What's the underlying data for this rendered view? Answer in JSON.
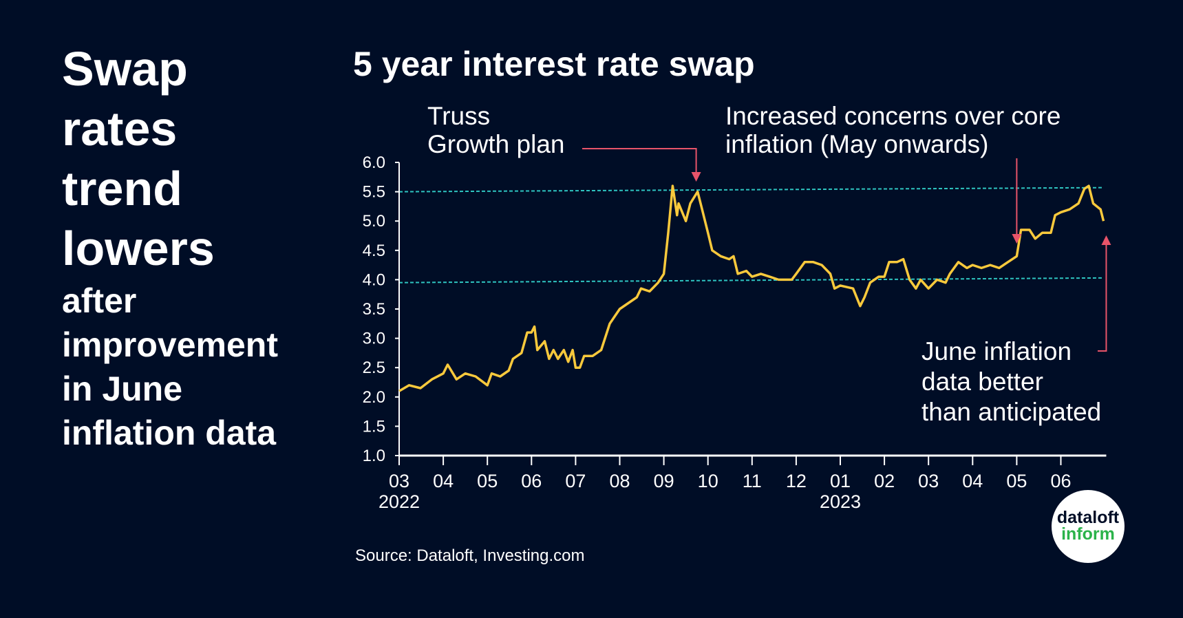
{
  "headline": {
    "big": [
      "Swap",
      "rates",
      "trend",
      "lowers"
    ],
    "small": [
      "after",
      "improvement",
      "in June",
      "inflation data"
    ]
  },
  "source": "Source: Dataloft, Investing.com",
  "logo": {
    "line1": "dataloft",
    "line2": "inform"
  },
  "colors": {
    "background": "#000d26",
    "series": "#f9c93c",
    "reference": "#2ec4c0",
    "annotation": "#e8546a"
  },
  "chart_data": {
    "type": "line",
    "title": "5 year interest rate swap",
    "ylim": [
      1.0,
      6.0
    ],
    "yticks": [
      "1.0",
      "1.5",
      "2.0",
      "2.5",
      "3.0",
      "3.5",
      "4.0",
      "4.5",
      "5.0",
      "5.5",
      "6.0"
    ],
    "xlim": [
      "2022-03-01",
      "2023-06-30"
    ],
    "xticks": [
      {
        "label": "03",
        "year": "2022"
      },
      {
        "label": "04"
      },
      {
        "label": "05"
      },
      {
        "label": "06"
      },
      {
        "label": "07"
      },
      {
        "label": "08"
      },
      {
        "label": "09"
      },
      {
        "label": "10"
      },
      {
        "label": "11"
      },
      {
        "label": "12"
      },
      {
        "label": "01",
        "year": "2023"
      },
      {
        "label": "02"
      },
      {
        "label": "03"
      },
      {
        "label": "04"
      },
      {
        "label": "05"
      },
      {
        "label": "06"
      }
    ],
    "grid": false,
    "series": [
      {
        "x": [
          "2022-03-01",
          "2022-03-08",
          "2022-03-16",
          "2022-03-24",
          "2022-04-01",
          "2022-04-04",
          "2022-04-10",
          "2022-04-16",
          "2022-04-23",
          "2022-05-01",
          "2022-05-04",
          "2022-05-10",
          "2022-05-16",
          "2022-05-19",
          "2022-05-25",
          "2022-05-29",
          "2022-06-01",
          "2022-06-03",
          "2022-06-05",
          "2022-06-10",
          "2022-06-13",
          "2022-06-16",
          "2022-06-19",
          "2022-06-23",
          "2022-06-26",
          "2022-06-29",
          "2022-07-01",
          "2022-07-04",
          "2022-07-07",
          "2022-07-13",
          "2022-07-19",
          "2022-07-25",
          "2022-08-01",
          "2022-08-07",
          "2022-08-13",
          "2022-08-16",
          "2022-08-22",
          "2022-08-28",
          "2022-09-01",
          "2022-09-04",
          "2022-09-07",
          "2022-09-10",
          "2022-09-11",
          "2022-09-16",
          "2022-09-19",
          "2022-09-24",
          "2022-09-27",
          "2022-10-01",
          "2022-10-04",
          "2022-10-10",
          "2022-10-16",
          "2022-10-19",
          "2022-10-22",
          "2022-10-28",
          "2022-11-01",
          "2022-11-07",
          "2022-11-13",
          "2022-11-19",
          "2022-11-28",
          "2022-12-01",
          "2022-12-07",
          "2022-12-13",
          "2022-12-19",
          "2022-12-25",
          "2022-12-28",
          "2023-01-01",
          "2023-01-10",
          "2023-01-15",
          "2023-01-18",
          "2023-01-22",
          "2023-01-28",
          "2023-02-01",
          "2023-02-04",
          "2023-02-09",
          "2023-02-13",
          "2023-02-17",
          "2023-02-21",
          "2023-02-24",
          "2023-03-01",
          "2023-03-07",
          "2023-03-13",
          "2023-03-16",
          "2023-03-22",
          "2023-03-28",
          "2023-04-01",
          "2023-04-07",
          "2023-04-13",
          "2023-04-19",
          "2023-04-25",
          "2023-05-01",
          "2023-05-04",
          "2023-05-10",
          "2023-05-14",
          "2023-05-19",
          "2023-05-25",
          "2023-05-28",
          "2023-06-01",
          "2023-06-07",
          "2023-06-13",
          "2023-06-17",
          "2023-06-20",
          "2023-06-23",
          "2023-06-28",
          "2023-06-30"
        ],
        "y": [
          2.1,
          2.2,
          2.15,
          2.3,
          2.4,
          2.55,
          2.3,
          2.4,
          2.35,
          2.2,
          2.4,
          2.35,
          2.45,
          2.65,
          2.75,
          3.1,
          3.1,
          3.2,
          2.8,
          2.95,
          2.65,
          2.8,
          2.65,
          2.8,
          2.6,
          2.8,
          2.5,
          2.5,
          2.7,
          2.7,
          2.8,
          3.25,
          3.5,
          3.6,
          3.7,
          3.85,
          3.8,
          3.95,
          4.1,
          4.8,
          5.6,
          5.1,
          5.3,
          5.0,
          5.3,
          5.5,
          5.2,
          4.8,
          4.5,
          4.4,
          4.35,
          4.4,
          4.1,
          4.15,
          4.05,
          4.1,
          4.05,
          4.0,
          4.0,
          4.1,
          4.3,
          4.3,
          4.25,
          4.1,
          3.85,
          3.9,
          3.85,
          3.55,
          3.7,
          3.95,
          4.05,
          4.05,
          4.3,
          4.3,
          4.35,
          4.0,
          3.85,
          4.0,
          3.85,
          4.0,
          3.95,
          4.1,
          4.3,
          4.2,
          4.25,
          4.2,
          4.25,
          4.2,
          4.3,
          4.4,
          4.85,
          4.85,
          4.7,
          4.8,
          4.8,
          5.1,
          5.15,
          5.2,
          5.3,
          5.55,
          5.6,
          5.3,
          5.2,
          5.0
        ]
      }
    ],
    "reference_lines": [
      {
        "from": [
          "2022-03-01",
          5.5
        ],
        "to": [
          "2023-06-30",
          5.57
        ]
      },
      {
        "from": [
          "2022-03-01",
          3.95
        ],
        "to": [
          "2023-06-30",
          4.03
        ]
      }
    ],
    "annotations": [
      {
        "lines": [
          "Truss",
          "Growth plan"
        ],
        "points_to": "2022-09-23"
      },
      {
        "lines": [
          "Increased concerns over core",
          "inflation (May onwards)"
        ],
        "points_to": "2023-05-01"
      },
      {
        "lines": [
          "June inflation",
          "data better",
          "than anticipated"
        ],
        "points_to": "2023-06-30"
      }
    ]
  }
}
